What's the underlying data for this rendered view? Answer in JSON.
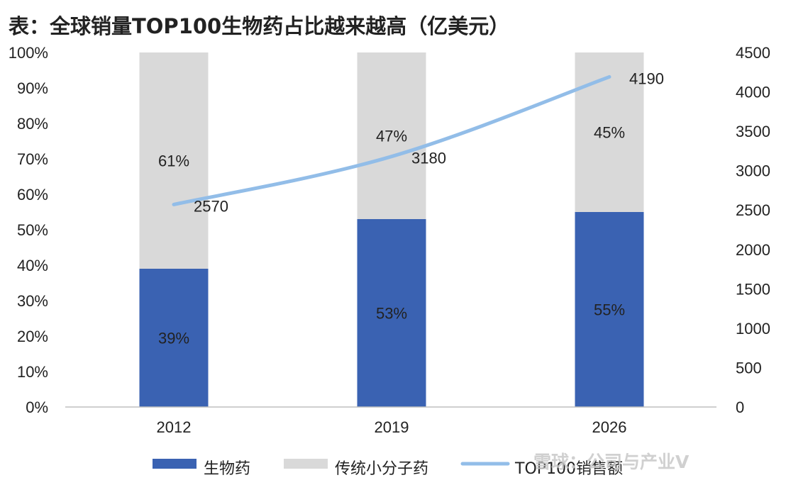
{
  "title": "表：全球销量TOP100生物药占比越来越高（亿美元）",
  "watermark": "雪球：公司与产业V",
  "colors": {
    "biologic": "#3a62b2",
    "small_molecule": "#d9d9d9",
    "line": "#92bde8",
    "axis_text": "#222222",
    "label_text": "#222222"
  },
  "chart_data": {
    "type": "bar",
    "stacked": true,
    "categories": [
      "2012",
      "2019",
      "2026"
    ],
    "series": [
      {
        "name": "生物药",
        "values": [
          39,
          53,
          55
        ],
        "labels": [
          "39%",
          "53%",
          "55%"
        ],
        "axis": "left"
      },
      {
        "name": "传统小分子药",
        "values": [
          61,
          47,
          45
        ],
        "labels": [
          "61%",
          "47%",
          "45%"
        ],
        "axis": "left"
      }
    ],
    "line_series": {
      "name": "TOP100销售额",
      "values": [
        2570,
        3180,
        4190
      ],
      "labels": [
        "2570",
        "3180",
        "4190"
      ],
      "axis": "right"
    },
    "left_axis": {
      "ylim": [
        0,
        100
      ],
      "ticks": [
        "0%",
        "10%",
        "20%",
        "30%",
        "40%",
        "50%",
        "60%",
        "70%",
        "80%",
        "90%",
        "100%"
      ]
    },
    "right_axis": {
      "ylim": [
        0,
        4500
      ],
      "ticks": [
        "0",
        "500",
        "1000",
        "1500",
        "2000",
        "2500",
        "3000",
        "3500",
        "4000",
        "4500"
      ]
    },
    "legend": {
      "position": "bottom",
      "items": [
        "生物药",
        "传统小分子药",
        "TOP100销售额"
      ]
    }
  }
}
